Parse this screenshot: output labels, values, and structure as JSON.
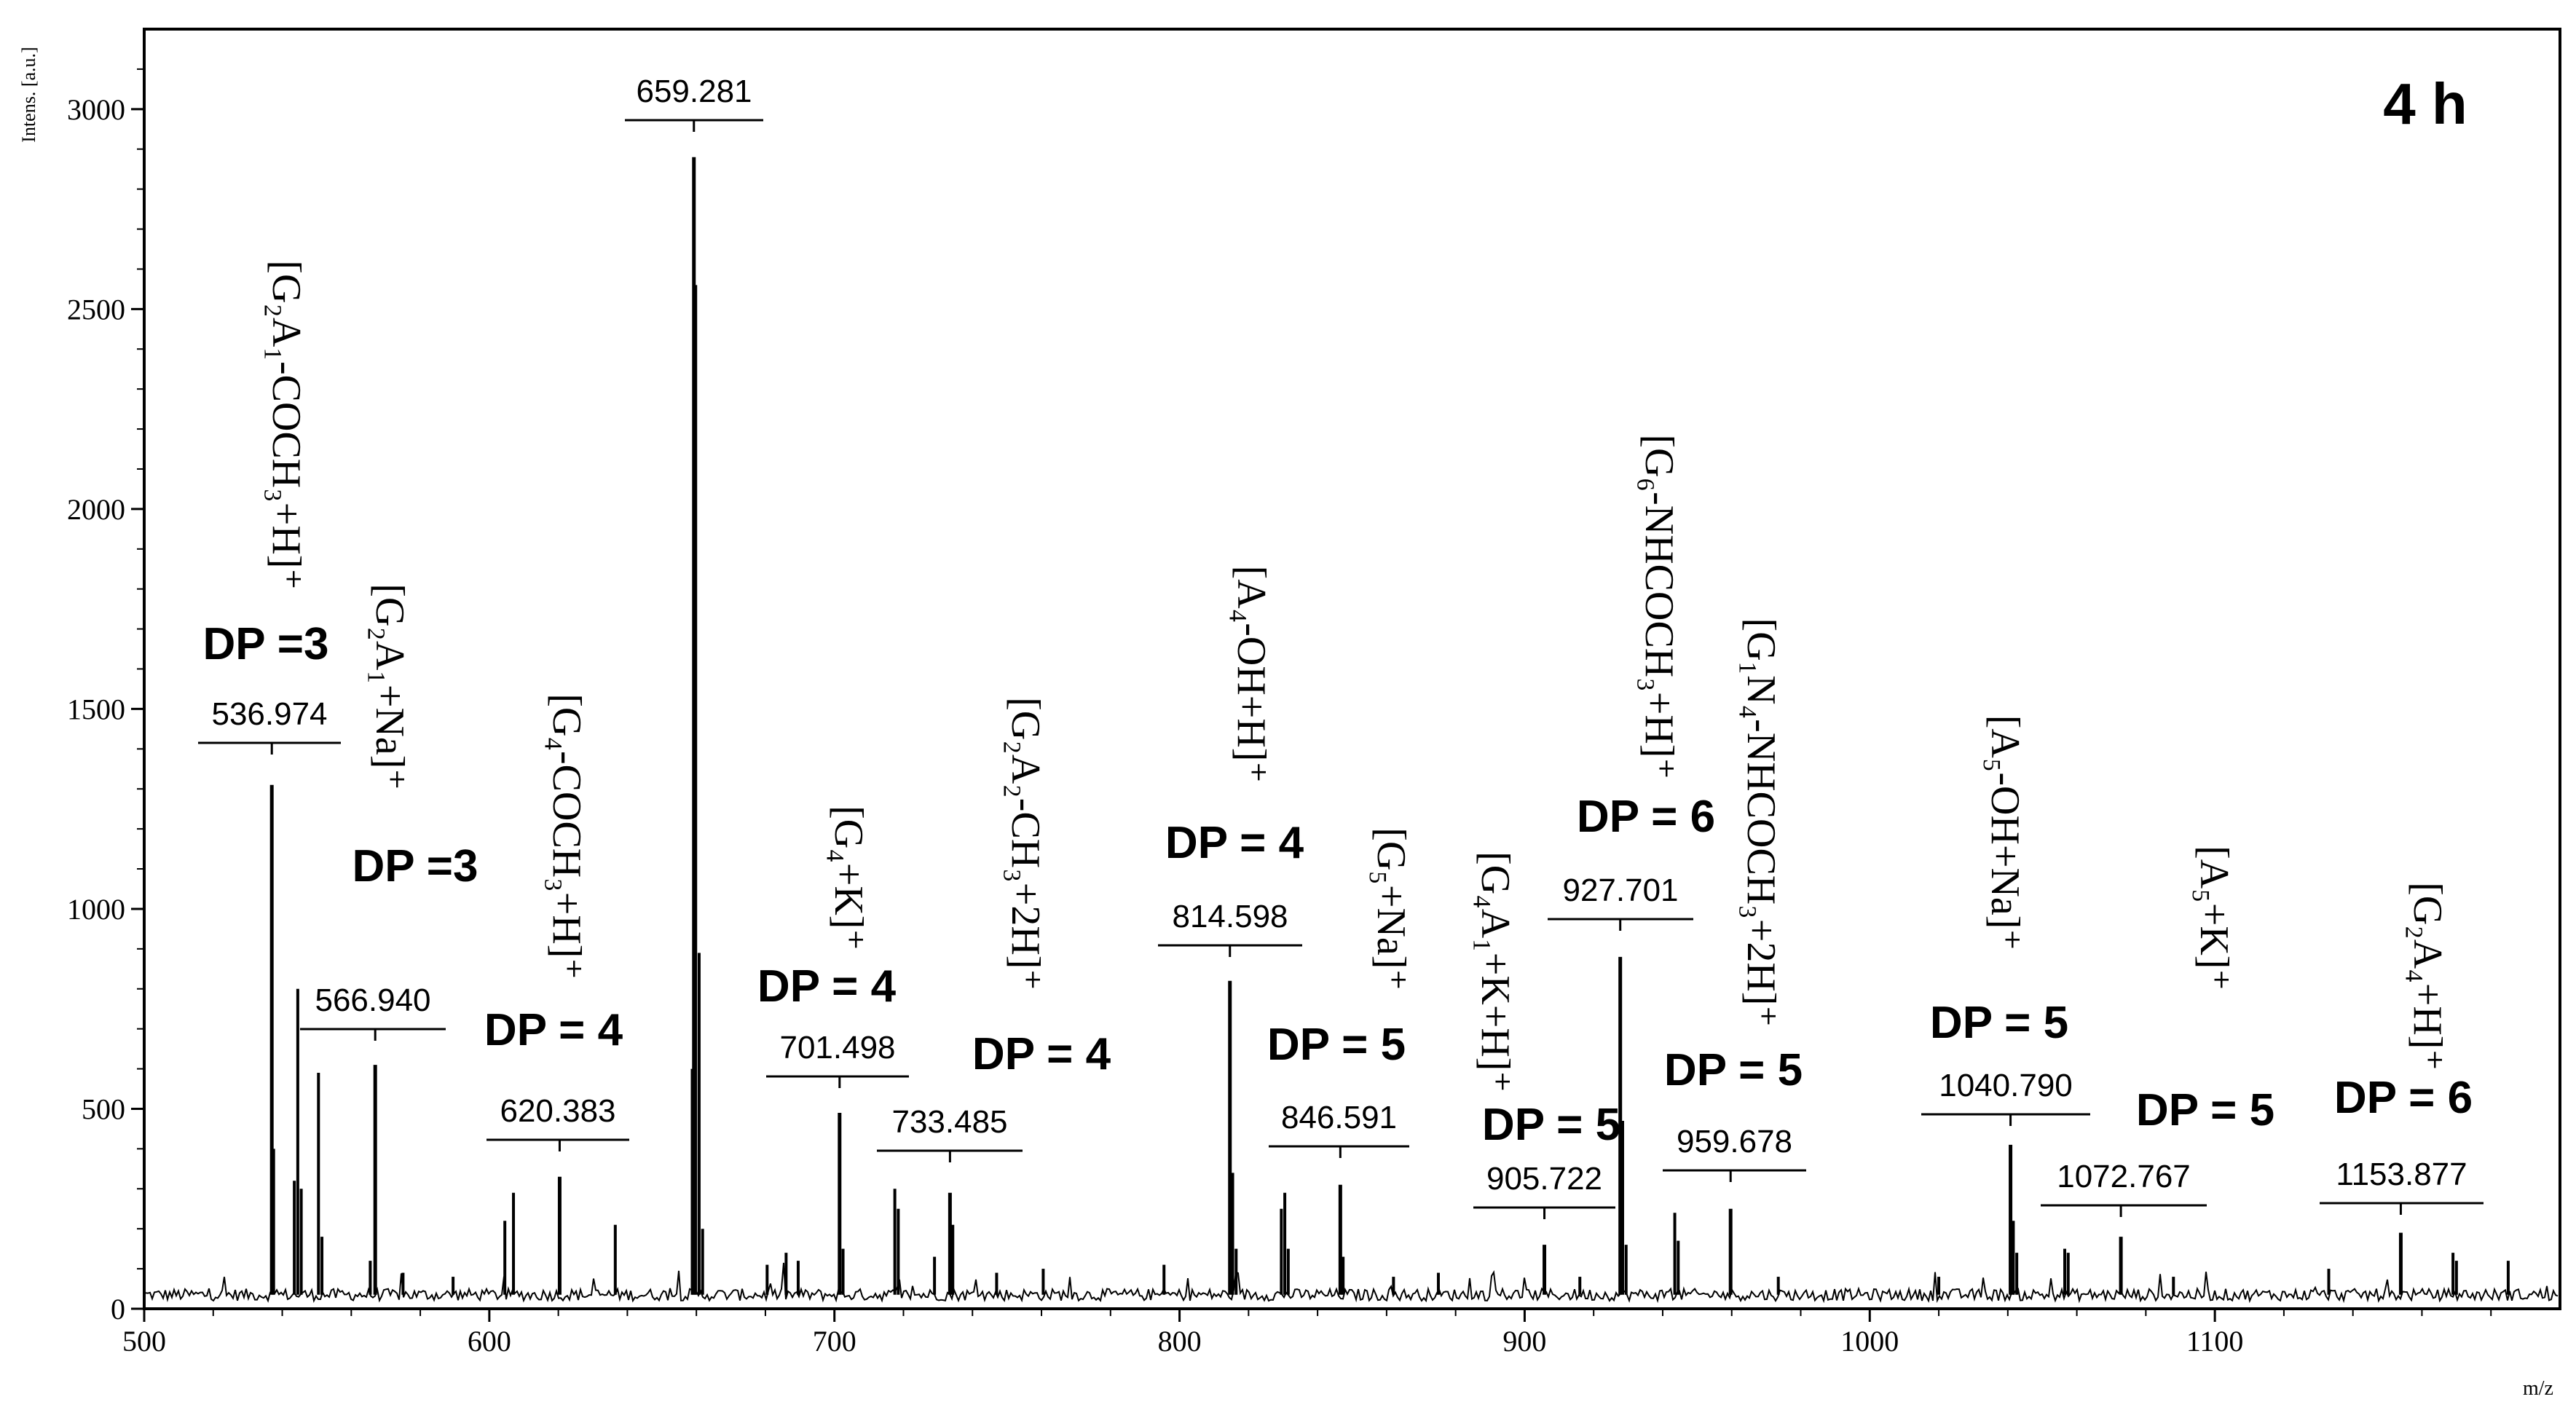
{
  "chart_data": {
    "type": "mass-spectrum",
    "panel_label": "4 h",
    "xlabel": "m/z",
    "ylabel": "Intens. [a.u.]",
    "xlim": [
      500,
      1200
    ],
    "ylim": [
      0,
      3200
    ],
    "xticks": [
      500,
      600,
      700,
      800,
      900,
      1000,
      1100
    ],
    "yticks": [
      0,
      500,
      1000,
      1500,
      2000,
      2500,
      3000
    ],
    "labeled_peaks": [
      {
        "mz": 536.974,
        "label": "536.974",
        "intensity": 1310,
        "dp": "DP =3",
        "assignment": "[G₂A₁-COCH₃+H]⁺"
      },
      {
        "mz": 566.94,
        "label": "566.940",
        "intensity": 610,
        "dp": "DP =3",
        "assignment": "[G₂A₁+Na]⁺"
      },
      {
        "mz": 620.383,
        "label": "620.383",
        "intensity": 330,
        "dp": "DP = 4",
        "assignment": "[G₄-COCH₃+H]⁺"
      },
      {
        "mz": 659.281,
        "label": "659.281",
        "intensity": 2880,
        "dp": "",
        "assignment": ""
      },
      {
        "mz": 701.498,
        "label": "701.498",
        "intensity": 490,
        "dp": "DP = 4",
        "assignment": "[G₄+K]⁺"
      },
      {
        "mz": 733.485,
        "label": "733.485",
        "intensity": 290,
        "dp": "DP = 4",
        "assignment": "[G₂A₂-CH₃+2H]⁺"
      },
      {
        "mz": 814.598,
        "label": "814.598",
        "intensity": 820,
        "dp": "DP = 4",
        "assignment": "[A₄-OH+H]⁺"
      },
      {
        "mz": 846.591,
        "label": "846.591",
        "intensity": 310,
        "dp": "DP = 5",
        "assignment": "[G₅+Na]⁺"
      },
      {
        "mz": 905.722,
        "label": "905.722",
        "intensity": 160,
        "dp": "DP = 5",
        "assignment": "[G₄A₁+K+H]⁺"
      },
      {
        "mz": 927.701,
        "label": "927.701",
        "intensity": 880,
        "dp": "DP = 6",
        "assignment": "[G₆-NHCOCH₃+H]⁺"
      },
      {
        "mz": 959.678,
        "label": "959.678",
        "intensity": 250,
        "dp": "DP = 5",
        "assignment": "[G₁N₄-NHCOCH₃+2H]⁺"
      },
      {
        "mz": 1040.79,
        "label": "1040.790",
        "intensity": 410,
        "dp": "DP = 5",
        "assignment": "[A₅-OH+Na]⁺"
      },
      {
        "mz": 1072.767,
        "label": "1072.767",
        "intensity": 180,
        "dp": "DP = 5",
        "assignment": "[A₅+K]⁺"
      },
      {
        "mz": 1153.877,
        "label": "1153.877",
        "intensity": 190,
        "dp": "DP = 6",
        "assignment": "[G₂A₄+H]⁺"
      }
    ],
    "minor_peaks": [
      {
        "mz": 537.5,
        "intensity": 400
      },
      {
        "mz": 543.5,
        "intensity": 320
      },
      {
        "mz": 544.5,
        "intensity": 800
      },
      {
        "mz": 545.5,
        "intensity": 300
      },
      {
        "mz": 550.5,
        "intensity": 590
      },
      {
        "mz": 551.5,
        "intensity": 180
      },
      {
        "mz": 565.5,
        "intensity": 120
      },
      {
        "mz": 575.0,
        "intensity": 90
      },
      {
        "mz": 589.5,
        "intensity": 80
      },
      {
        "mz": 604.5,
        "intensity": 220
      },
      {
        "mz": 607.0,
        "intensity": 290
      },
      {
        "mz": 636.5,
        "intensity": 210
      },
      {
        "mz": 658.8,
        "intensity": 600
      },
      {
        "mz": 659.8,
        "intensity": 2560
      },
      {
        "mz": 660.8,
        "intensity": 890
      },
      {
        "mz": 661.8,
        "intensity": 200
      },
      {
        "mz": 680.5,
        "intensity": 110
      },
      {
        "mz": 686.0,
        "intensity": 140
      },
      {
        "mz": 689.5,
        "intensity": 120
      },
      {
        "mz": 702.5,
        "intensity": 150
      },
      {
        "mz": 717.5,
        "intensity": 300
      },
      {
        "mz": 718.5,
        "intensity": 250
      },
      {
        "mz": 729.0,
        "intensity": 130
      },
      {
        "mz": 734.3,
        "intensity": 210
      },
      {
        "mz": 747.0,
        "intensity": 90
      },
      {
        "mz": 760.5,
        "intensity": 100
      },
      {
        "mz": 795.5,
        "intensity": 110
      },
      {
        "mz": 815.4,
        "intensity": 340
      },
      {
        "mz": 816.4,
        "intensity": 150
      },
      {
        "mz": 829.5,
        "intensity": 250
      },
      {
        "mz": 830.5,
        "intensity": 290
      },
      {
        "mz": 831.5,
        "intensity": 150
      },
      {
        "mz": 847.4,
        "intensity": 130
      },
      {
        "mz": 862.0,
        "intensity": 80
      },
      {
        "mz": 875.0,
        "intensity": 90
      },
      {
        "mz": 916.0,
        "intensity": 80
      },
      {
        "mz": 928.4,
        "intensity": 470
      },
      {
        "mz": 929.4,
        "intensity": 160
      },
      {
        "mz": 943.5,
        "intensity": 240
      },
      {
        "mz": 944.5,
        "intensity": 170
      },
      {
        "mz": 973.5,
        "intensity": 80
      },
      {
        "mz": 1020.0,
        "intensity": 80
      },
      {
        "mz": 1041.6,
        "intensity": 220
      },
      {
        "mz": 1042.6,
        "intensity": 140
      },
      {
        "mz": 1056.5,
        "intensity": 150
      },
      {
        "mz": 1057.5,
        "intensity": 140
      },
      {
        "mz": 1088.0,
        "intensity": 80
      },
      {
        "mz": 1133.0,
        "intensity": 100
      },
      {
        "mz": 1169.0,
        "intensity": 140
      },
      {
        "mz": 1170.0,
        "intensity": 120
      },
      {
        "mz": 1185.0,
        "intensity": 120
      }
    ],
    "baseline": 35
  }
}
